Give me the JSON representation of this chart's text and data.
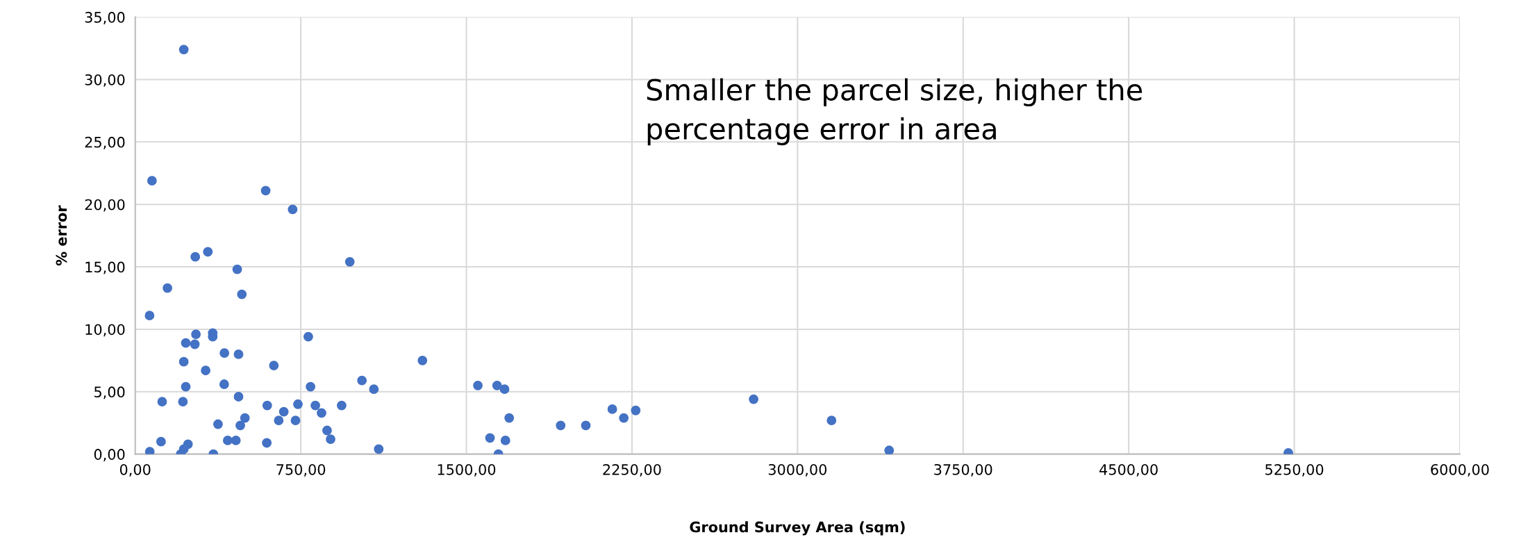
{
  "chart_data": {
    "type": "scatter",
    "xlabel": "Ground Survey Area (sqm)",
    "ylabel": "% error",
    "annotations": [
      "Smaller the parcel size, higher the percentage error in area"
    ],
    "series": [
      {
        "color": "#4472c4",
        "x": [
          220,
          76,
          591,
          713,
          272,
          329,
          972,
          462,
          146,
          483,
          65,
          275,
          351,
          351,
          784,
          229,
          270,
          404,
          468,
          220,
          319,
          628,
          1301,
          229,
          403,
          794,
          1027,
          1081,
          1552,
          1639,
          1673,
          468,
          122,
          216,
          598,
          737,
          816,
          935,
          673,
          844,
          497,
          650,
          726,
          476,
          375,
          1694,
          1927,
          2041,
          2161,
          2213,
          2267,
          2801,
          3154,
          3415,
          5223,
          869,
          885,
          419,
          456,
          596,
          117,
          239,
          220,
          206,
          66,
          354,
          1103,
          1607,
          1677,
          1645
        ],
        "values": [
          32.4,
          21.9,
          21.1,
          19.6,
          15.8,
          16.2,
          15.4,
          14.8,
          13.3,
          12.8,
          11.1,
          9.6,
          9.7,
          9.4,
          9.4,
          8.9,
          8.8,
          8.1,
          8.0,
          7.4,
          6.7,
          7.1,
          7.5,
          5.4,
          5.6,
          5.4,
          5.9,
          5.2,
          5.5,
          5.5,
          5.2,
          4.6,
          4.2,
          4.2,
          3.9,
          4.0,
          3.9,
          3.9,
          3.4,
          3.3,
          2.9,
          2.7,
          2.7,
          2.3,
          2.4,
          2.9,
          2.3,
          2.3,
          3.6,
          2.9,
          3.5,
          4.4,
          2.7,
          0.3,
          0.1,
          1.9,
          1.2,
          1.1,
          1.1,
          0.9,
          1.0,
          0.8,
          0.4,
          0.0,
          0.2,
          0.0,
          0.4,
          1.3,
          1.1,
          0.0
        ]
      }
    ],
    "xlim": [
      0,
      6000
    ],
    "ylim": [
      0,
      35
    ],
    "xticks": [
      {
        "value": 0,
        "label": "0,00"
      },
      {
        "value": 750,
        "label": "750,00"
      },
      {
        "value": 1500,
        "label": "1500,00"
      },
      {
        "value": 2250,
        "label": "2250,00"
      },
      {
        "value": 3000,
        "label": "3000,00"
      },
      {
        "value": 3750,
        "label": "3750,00"
      },
      {
        "value": 4500,
        "label": "4500,00"
      },
      {
        "value": 5250,
        "label": "5250,00"
      },
      {
        "value": 6000,
        "label": "6000,00"
      }
    ],
    "yticks": [
      {
        "value": 0,
        "label": "0,00"
      },
      {
        "value": 5,
        "label": "5,00"
      },
      {
        "value": 10,
        "label": "10,00"
      },
      {
        "value": 15,
        "label": "15,00"
      },
      {
        "value": 20,
        "label": "20,00"
      },
      {
        "value": 25,
        "label": "25,00"
      },
      {
        "value": 30,
        "label": "30,00"
      },
      {
        "value": 35,
        "label": "35,00"
      }
    ],
    "grid": true,
    "legend": false,
    "marker": "circle"
  }
}
